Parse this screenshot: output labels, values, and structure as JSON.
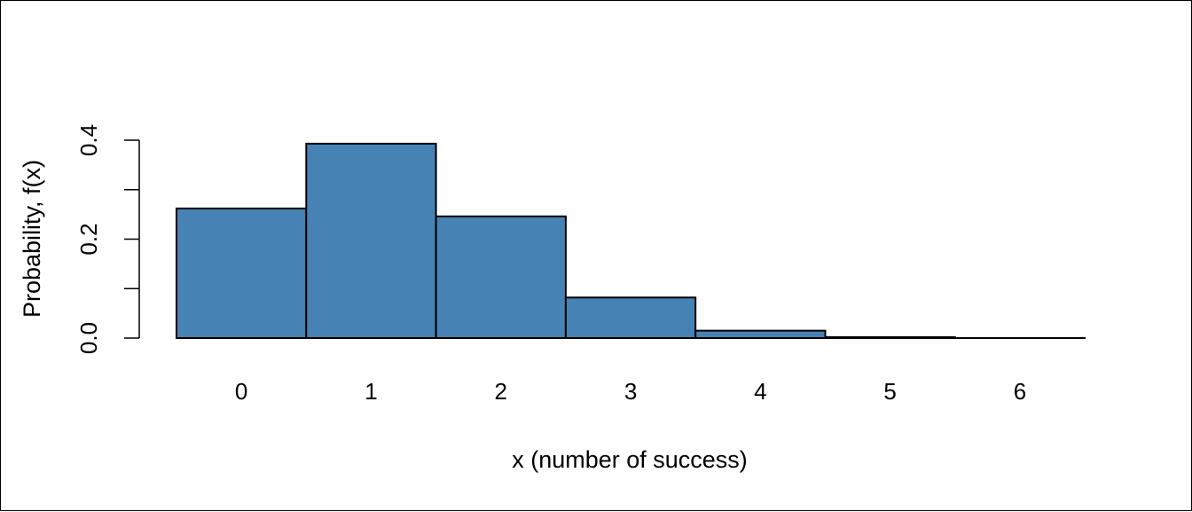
{
  "chart_data": {
    "type": "bar",
    "categories": [
      "0",
      "1",
      "2",
      "3",
      "4",
      "5",
      "6"
    ],
    "values": [
      0.262,
      0.393,
      0.246,
      0.082,
      0.015,
      0.002,
      0.0001
    ],
    "xlabel": "x (number of success)",
    "ylabel": "Probability, f(x)",
    "ylim": [
      0,
      0.4
    ],
    "yticks": [
      0.0,
      0.1,
      0.2,
      0.3,
      0.4
    ],
    "ytick_labels": [
      "0.0",
      "",
      "0.2",
      "",
      "0.4"
    ],
    "bar_color": "#4682b4",
    "edge_color": "#000000",
    "grid": false
  }
}
